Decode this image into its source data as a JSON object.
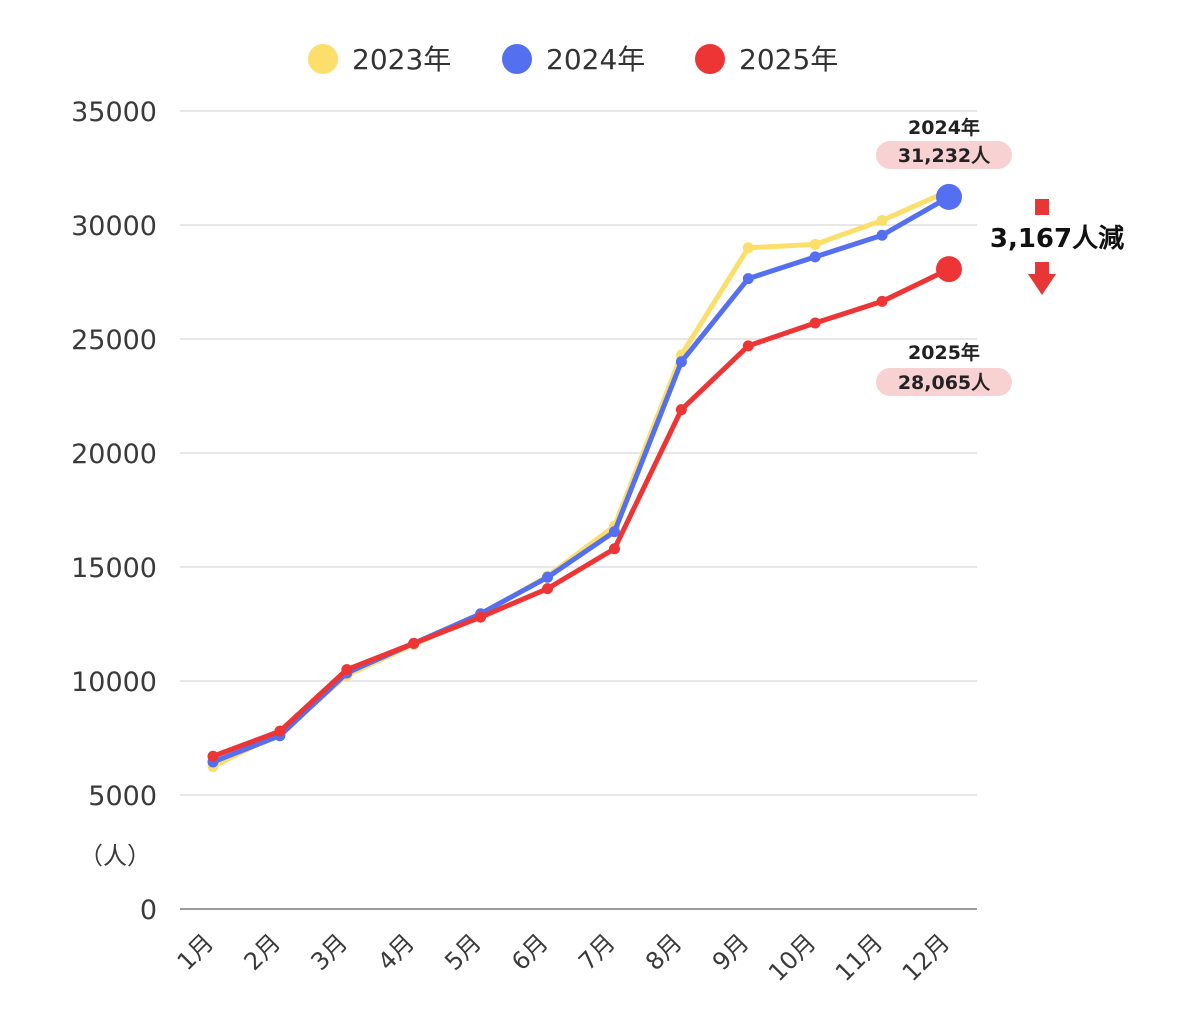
{
  "chart_data": {
    "type": "line",
    "categories": [
      "1月",
      "2月",
      "3月",
      "4月",
      "5月",
      "6月",
      "7月",
      "8月",
      "9月",
      "10月",
      "11月",
      "12月"
    ],
    "series": [
      {
        "name": "2023年",
        "color": "#FBDF6A",
        "values": [
          6250,
          7700,
          10250,
          11600,
          12900,
          14600,
          16800,
          24300,
          29000,
          29150,
          30200,
          31500
        ]
      },
      {
        "name": "2024年",
        "color": "#5470F0",
        "values": [
          6450,
          7600,
          10350,
          11650,
          12950,
          14550,
          16550,
          24000,
          27650,
          28600,
          29550,
          31232
        ]
      },
      {
        "name": "2025年",
        "color": "#EE3535",
        "values": [
          6700,
          7800,
          10500,
          11650,
          12800,
          14050,
          15800,
          21900,
          24700,
          25700,
          26650,
          28065
        ]
      }
    ],
    "y_ticks": [
      "0",
      "5000",
      "10000",
      "15000",
      "20000",
      "25000",
      "30000",
      "35000"
    ],
    "ylim": [
      0,
      35000
    ],
    "ylabel": "（人）",
    "grid": true,
    "legend_position": "top-center",
    "annotations": {
      "callout_2024": {
        "year": "2024年",
        "value": "31,232人"
      },
      "callout_2025": {
        "year": "2025年",
        "value": "28,065人"
      },
      "difference": "3,167人減"
    }
  }
}
